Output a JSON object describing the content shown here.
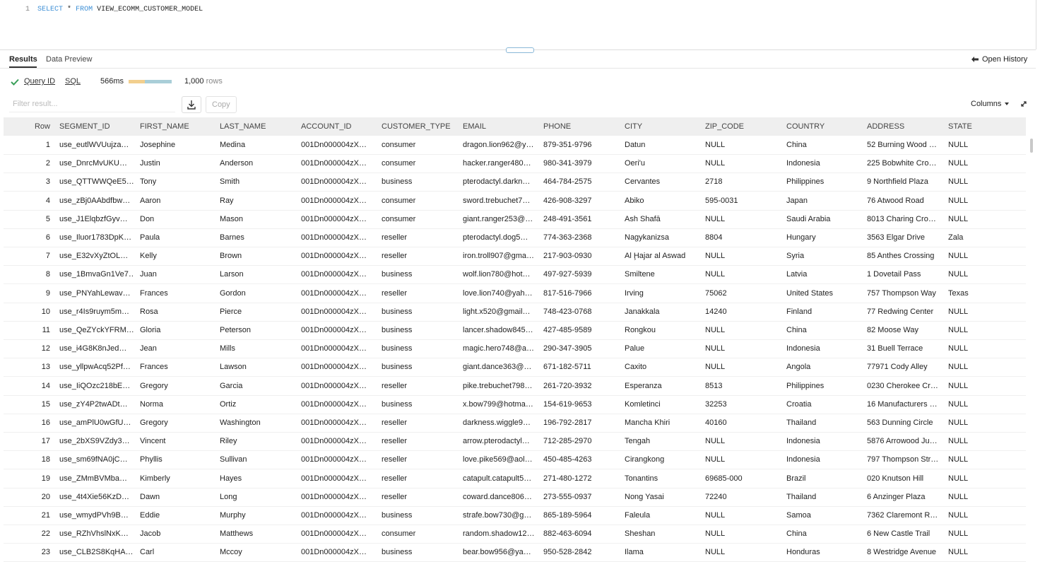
{
  "editor": {
    "line_number": "1",
    "query": [
      "SELECT",
      "*",
      "FROM",
      "VIEW_ECOMM_CUSTOMER_MODEL"
    ]
  },
  "tabs": [
    "Results",
    "Data Preview"
  ],
  "open_history": "Open History",
  "status": {
    "query_id": "Query ID",
    "sql": "SQL",
    "duration": "566ms",
    "row_count": "1,000",
    "row_unit": "rows"
  },
  "toolbar": {
    "filter_placeholder": "Filter result...",
    "copy": "Copy",
    "columns": "Columns"
  },
  "table": {
    "columns": [
      "Row",
      "SEGMENT_ID",
      "FIRST_NAME",
      "LAST_NAME",
      "ACCOUNT_ID",
      "CUSTOMER_TYPE",
      "EMAIL",
      "PHONE",
      "CITY",
      "ZIP_CODE",
      "COUNTRY",
      "ADDRESS",
      "STATE"
    ],
    "rows": [
      [
        1,
        "use_eutlWVUujza…",
        "Josephine",
        "Medina",
        "001Dn000004zX…",
        "consumer",
        "dragon.lion962@y…",
        "879-351-9796",
        "Datun",
        "NULL",
        "China",
        "52 Burning Wood …",
        "NULL"
      ],
      [
        2,
        "use_DnrcMvUKU…",
        "Justin",
        "Anderson",
        "001Dn000004zX…",
        "consumer",
        "hacker.ranger480…",
        "980-341-3979",
        "Oeri'u",
        "NULL",
        "Indonesia",
        "225 Bobwhite Cro…",
        "NULL"
      ],
      [
        3,
        "use_QTTWWQeE5…",
        "Tony",
        "Smith",
        "001Dn000004zX…",
        "business",
        "pterodactyl.darkn…",
        "464-784-2575",
        "Cervantes",
        "2718",
        "Philippines",
        "9 Northfield Plaza",
        "NULL"
      ],
      [
        4,
        "use_zBj0AAbdfbw…",
        "Aaron",
        "Ray",
        "001Dn000004zX…",
        "consumer",
        "sword.trebuchet7…",
        "426-908-3297",
        "Abiko",
        "595-0031",
        "Japan",
        "76 Atwood Road",
        "NULL"
      ],
      [
        5,
        "use_J1ElqbzfGyv…",
        "Don",
        "Mason",
        "001Dn000004zX…",
        "consumer",
        "giant.ranger253@…",
        "248-491-3561",
        "Ash Shafā",
        "NULL",
        "Saudi Arabia",
        "8013 Charing Cro…",
        "NULL"
      ],
      [
        6,
        "use_Iluor1783DpK…",
        "Paula",
        "Barnes",
        "001Dn000004zX…",
        "reseller",
        "pterodactyl.dog5…",
        "774-363-2368",
        "Nagykanizsa",
        "8804",
        "Hungary",
        "3563 Elgar Drive",
        "Zala"
      ],
      [
        7,
        "use_E32vXyZtOL…",
        "Kelly",
        "Brown",
        "001Dn000004zX…",
        "reseller",
        "iron.troll907@gma…",
        "217-903-0930",
        "Al Ḩajar al Aswad",
        "NULL",
        "Syria",
        "85 Anthes Crossing",
        "NULL"
      ],
      [
        8,
        "use_1BmvaGn1Ve7…",
        "Juan",
        "Larson",
        "001Dn000004zX…",
        "business",
        "wolf.lion780@hot…",
        "497-927-5939",
        "Smiltene",
        "NULL",
        "Latvia",
        "1 Dovetail Pass",
        "NULL"
      ],
      [
        9,
        "use_PNYahLewav…",
        "Frances",
        "Gordon",
        "001Dn000004zX…",
        "reseller",
        "love.lion740@yah…",
        "817-516-7966",
        "Irving",
        "75062",
        "United States",
        "757 Thompson Way",
        "Texas"
      ],
      [
        10,
        "use_r4Is9ruym5m…",
        "Rosa",
        "Pierce",
        "001Dn000004zX…",
        "business",
        "light.x520@gmail…",
        "748-423-0768",
        "Janakkala",
        "14240",
        "Finland",
        "77 Redwing Center",
        "NULL"
      ],
      [
        11,
        "use_QeZYckYFRM…",
        "Gloria",
        "Peterson",
        "001Dn000004zX…",
        "business",
        "lancer.shadow845…",
        "427-485-9589",
        "Rongkou",
        "NULL",
        "China",
        "82 Moose Way",
        "NULL"
      ],
      [
        12,
        "use_i4G8K8nJed…",
        "Jean",
        "Mills",
        "001Dn000004zX…",
        "business",
        "magic.hero748@a…",
        "290-347-3905",
        "Palue",
        "NULL",
        "Indonesia",
        "31 Buell Terrace",
        "NULL"
      ],
      [
        13,
        "use_yllpwAcq52Pf…",
        "Frances",
        "Lawson",
        "001Dn000004zX…",
        "business",
        "giant.dance363@…",
        "671-182-5711",
        "Caxito",
        "NULL",
        "Angola",
        "77971 Cody Alley",
        "NULL"
      ],
      [
        14,
        "use_IiQOzc218bE…",
        "Gregory",
        "Garcia",
        "001Dn000004zX…",
        "reseller",
        "pike.trebuchet798…",
        "261-720-3932",
        "Esperanza",
        "8513",
        "Philippines",
        "0230 Cherokee Cr…",
        "NULL"
      ],
      [
        15,
        "use_zY4P2twADt…",
        "Norma",
        "Ortiz",
        "001Dn000004zX…",
        "business",
        "x.bow799@hotma…",
        "154-619-9653",
        "Komletinci",
        "32253",
        "Croatia",
        "16 Manufacturers …",
        "NULL"
      ],
      [
        16,
        "use_amPlU0wGfU…",
        "Gregory",
        "Washington",
        "001Dn000004zX…",
        "reseller",
        "darkness.wiggle9…",
        "196-792-2817",
        "Mancha Khiri",
        "40160",
        "Thailand",
        "563 Dunning Circle",
        "NULL"
      ],
      [
        17,
        "use_2bXS9VZdy3…",
        "Vincent",
        "Riley",
        "001Dn000004zX…",
        "reseller",
        "arrow.pterodactyl…",
        "712-285-2970",
        "Tengah",
        "NULL",
        "Indonesia",
        "5876 Arrowood Ju…",
        "NULL"
      ],
      [
        18,
        "use_sm69fNA0jC…",
        "Phyllis",
        "Sullivan",
        "001Dn000004zX…",
        "reseller",
        "love.pike569@aol…",
        "450-485-4263",
        "Cirangkong",
        "NULL",
        "Indonesia",
        "797 Thompson Str…",
        "NULL"
      ],
      [
        19,
        "use_ZMmBVMba…",
        "Kimberly",
        "Hayes",
        "001Dn000004zX…",
        "reseller",
        "catapult.catapult5…",
        "271-480-1272",
        "Tonantins",
        "69685-000",
        "Brazil",
        "020 Knutson Hill",
        "NULL"
      ],
      [
        20,
        "use_4t4Xie56KzD…",
        "Dawn",
        "Long",
        "001Dn000004zX…",
        "reseller",
        "coward.dance806…",
        "273-555-0937",
        "Nong Yasai",
        "72240",
        "Thailand",
        "6 Anzinger Plaza",
        "NULL"
      ],
      [
        21,
        "use_wmydPVh9B…",
        "Eddie",
        "Murphy",
        "001Dn000004zX…",
        "business",
        "strafe.bow730@g…",
        "865-189-5964",
        "Faleula",
        "NULL",
        "Samoa",
        "7362 Claremont R…",
        "NULL"
      ],
      [
        22,
        "use_RZhVhslNxK…",
        "Jacob",
        "Matthews",
        "001Dn000004zX…",
        "consumer",
        "random.shadow12…",
        "882-463-6094",
        "Sheshan",
        "NULL",
        "China",
        "6 New Castle Trail",
        "NULL"
      ],
      [
        23,
        "use_CLB2S8KqHA…",
        "Carl",
        "Mccoy",
        "001Dn000004zX…",
        "business",
        "bear.bow956@ya…",
        "950-528-2842",
        "Ilama",
        "NULL",
        "Honduras",
        "8 Westridge Avenue",
        "NULL"
      ]
    ]
  }
}
